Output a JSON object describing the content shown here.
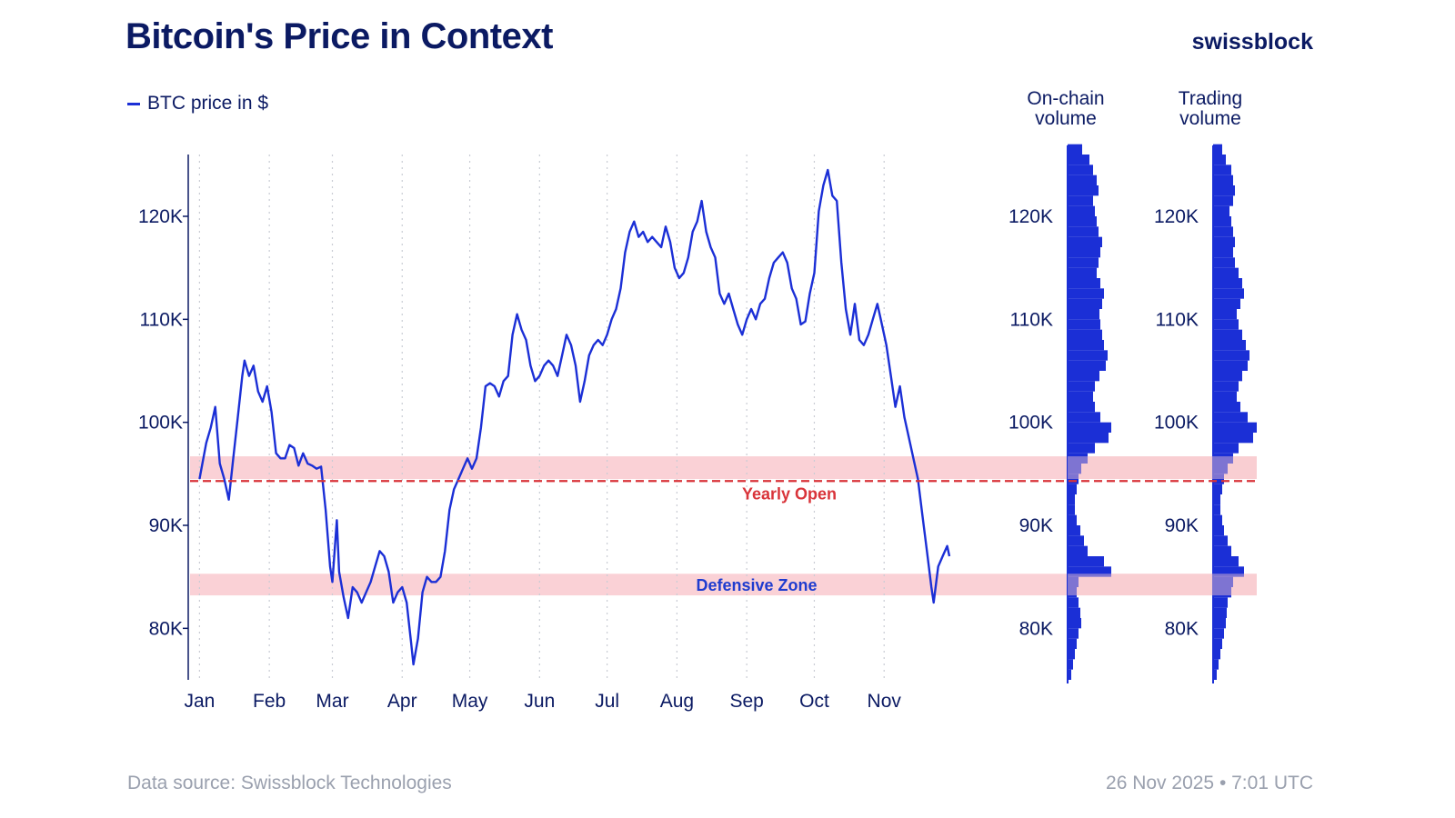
{
  "header": {
    "title": "Bitcoin's Price in Context",
    "brand": "swissblock"
  },
  "legend": {
    "series_label": "BTC price in $"
  },
  "volume_panels": {
    "onchain_title": "On-chain volume",
    "trading_title": "Trading volume"
  },
  "footer": {
    "source": "Data source: Swissblock Technologies",
    "timestamp": "26 Nov 2025 • 7:01 UTC"
  },
  "colors": {
    "line": "#1b2fd6",
    "zone": "#f9c9cf",
    "yearly_open": "#d9343a",
    "defensive_label": "#1f3ccf",
    "axis": "#0b1a63"
  },
  "chart_data": {
    "type": "line",
    "title": "Bitcoin's Price in Context",
    "series_name": "BTC price in $",
    "ylim": [
      75000,
      126000
    ],
    "y_ticks": [
      80000,
      90000,
      100000,
      110000,
      120000
    ],
    "y_tick_labels": [
      "80K",
      "90K",
      "100K",
      "110K",
      "120K"
    ],
    "month_labels": [
      "Jan",
      "Feb",
      "Mar",
      "Apr",
      "May",
      "Jun",
      "Jul",
      "Aug",
      "Sep",
      "Oct",
      "Nov"
    ],
    "x_unit": "day of 2025",
    "month_start_days": [
      0,
      31,
      59,
      90,
      120,
      151,
      181,
      212,
      243,
      273,
      304
    ],
    "xlim": [
      -5,
      335
    ],
    "grid": "vertical dotted at month starts",
    "price_points": [
      [
        0,
        94500
      ],
      [
        3,
        98000
      ],
      [
        5,
        99500
      ],
      [
        7,
        101500
      ],
      [
        9,
        96000
      ],
      [
        11,
        94500
      ],
      [
        13,
        92500
      ],
      [
        15,
        96500
      ],
      [
        17,
        100500
      ],
      [
        19,
        104500
      ],
      [
        20,
        106000
      ],
      [
        22,
        104500
      ],
      [
        24,
        105500
      ],
      [
        26,
        103000
      ],
      [
        28,
        102000
      ],
      [
        30,
        103500
      ],
      [
        32,
        101000
      ],
      [
        34,
        97000
      ],
      [
        36,
        96500
      ],
      [
        38,
        96500
      ],
      [
        40,
        97800
      ],
      [
        42,
        97500
      ],
      [
        44,
        95800
      ],
      [
        46,
        97000
      ],
      [
        48,
        96000
      ],
      [
        50,
        95800
      ],
      [
        52,
        95500
      ],
      [
        54,
        95700
      ],
      [
        56,
        91500
      ],
      [
        58,
        86000
      ],
      [
        59,
        84500
      ],
      [
        61,
        90500
      ],
      [
        62,
        85500
      ],
      [
        64,
        83000
      ],
      [
        66,
        81000
      ],
      [
        68,
        84000
      ],
      [
        70,
        83500
      ],
      [
        72,
        82500
      ],
      [
        74,
        83500
      ],
      [
        76,
        84500
      ],
      [
        78,
        86000
      ],
      [
        80,
        87500
      ],
      [
        82,
        87000
      ],
      [
        84,
        85500
      ],
      [
        86,
        82500
      ],
      [
        88,
        83500
      ],
      [
        90,
        84000
      ],
      [
        92,
        82500
      ],
      [
        94,
        78500
      ],
      [
        95,
        76500
      ],
      [
        97,
        79000
      ],
      [
        99,
        83500
      ],
      [
        101,
        85000
      ],
      [
        103,
        84500
      ],
      [
        105,
        84500
      ],
      [
        107,
        85000
      ],
      [
        109,
        87500
      ],
      [
        111,
        91500
      ],
      [
        113,
        93500
      ],
      [
        115,
        94500
      ],
      [
        117,
        95500
      ],
      [
        119,
        96500
      ],
      [
        121,
        95500
      ],
      [
        123,
        96500
      ],
      [
        125,
        99500
      ],
      [
        127,
        103500
      ],
      [
        129,
        103800
      ],
      [
        131,
        103500
      ],
      [
        133,
        102500
      ],
      [
        135,
        104000
      ],
      [
        137,
        104500
      ],
      [
        139,
        108500
      ],
      [
        141,
        110500
      ],
      [
        143,
        109000
      ],
      [
        145,
        108000
      ],
      [
        147,
        105500
      ],
      [
        149,
        104000
      ],
      [
        151,
        104500
      ],
      [
        153,
        105500
      ],
      [
        155,
        106000
      ],
      [
        157,
        105500
      ],
      [
        159,
        104500
      ],
      [
        161,
        106500
      ],
      [
        163,
        108500
      ],
      [
        165,
        107500
      ],
      [
        167,
        105500
      ],
      [
        169,
        102000
      ],
      [
        171,
        104000
      ],
      [
        173,
        106500
      ],
      [
        175,
        107500
      ],
      [
        177,
        108000
      ],
      [
        179,
        107500
      ],
      [
        181,
        108500
      ],
      [
        183,
        110000
      ],
      [
        185,
        111000
      ],
      [
        187,
        113000
      ],
      [
        189,
        116500
      ],
      [
        191,
        118500
      ],
      [
        193,
        119500
      ],
      [
        195,
        118000
      ],
      [
        197,
        118500
      ],
      [
        199,
        117500
      ],
      [
        201,
        118000
      ],
      [
        203,
        117500
      ],
      [
        205,
        117000
      ],
      [
        207,
        119000
      ],
      [
        209,
        117500
      ],
      [
        211,
        115000
      ],
      [
        213,
        114000
      ],
      [
        215,
        114500
      ],
      [
        217,
        116000
      ],
      [
        219,
        118500
      ],
      [
        221,
        119500
      ],
      [
        223,
        121500
      ],
      [
        225,
        118500
      ],
      [
        227,
        117000
      ],
      [
        229,
        116000
      ],
      [
        231,
        112500
      ],
      [
        233,
        111500
      ],
      [
        235,
        112500
      ],
      [
        237,
        111000
      ],
      [
        239,
        109500
      ],
      [
        241,
        108500
      ],
      [
        243,
        110000
      ],
      [
        245,
        111000
      ],
      [
        247,
        110000
      ],
      [
        249,
        111500
      ],
      [
        251,
        112000
      ],
      [
        253,
        114000
      ],
      [
        255,
        115500
      ],
      [
        257,
        116000
      ],
      [
        259,
        116500
      ],
      [
        261,
        115500
      ],
      [
        263,
        113000
      ],
      [
        265,
        112000
      ],
      [
        267,
        109500
      ],
      [
        269,
        109800
      ],
      [
        271,
        112500
      ],
      [
        273,
        114500
      ],
      [
        275,
        120500
      ],
      [
        277,
        123000
      ],
      [
        279,
        124500
      ],
      [
        281,
        122000
      ],
      [
        283,
        121500
      ],
      [
        285,
        115500
      ],
      [
        287,
        111000
      ],
      [
        289,
        108500
      ],
      [
        291,
        111500
      ],
      [
        293,
        108000
      ],
      [
        295,
        107500
      ],
      [
        297,
        108500
      ],
      [
        299,
        110000
      ],
      [
        301,
        111500
      ],
      [
        303,
        109500
      ],
      [
        305,
        107500
      ],
      [
        307,
        104500
      ],
      [
        309,
        101500
      ],
      [
        311,
        103500
      ],
      [
        313,
        100500
      ],
      [
        315,
        98500
      ],
      [
        317,
        96500
      ],
      [
        319,
        94500
      ],
      [
        321,
        91000
      ],
      [
        323,
        87500
      ],
      [
        325,
        84000
      ],
      [
        326,
        82500
      ],
      [
        328,
        86000
      ],
      [
        330,
        87000
      ],
      [
        332,
        88000
      ],
      [
        333,
        87000
      ]
    ],
    "yearly_open_value": 94300,
    "yearly_open_label": "Yearly Open",
    "zones": [
      {
        "label": "",
        "from": 94500,
        "to": 96700
      },
      {
        "label": "Defensive Zone",
        "from": 83200,
        "to": 85300
      }
    ],
    "onchain_volume_profile": {
      "bins_from": 75000,
      "bin_size": 1000,
      "values": [
        4,
        6,
        8,
        10,
        12,
        15,
        14,
        12,
        10,
        12,
        48,
        40,
        22,
        18,
        14,
        10,
        8,
        8,
        10,
        12,
        15,
        22,
        30,
        45,
        48,
        36,
        30,
        28,
        30,
        35,
        42,
        44,
        40,
        38,
        36,
        35,
        38,
        40,
        36,
        32,
        34,
        36,
        38,
        34,
        32,
        30,
        28,
        34,
        32,
        28,
        24,
        16,
        10
      ]
    },
    "trading_volume_profile": {
      "bins_from": 75000,
      "bin_size": 1000,
      "values": [
        4,
        6,
        8,
        10,
        12,
        14,
        15,
        16,
        20,
        22,
        34,
        28,
        20,
        16,
        12,
        10,
        8,
        8,
        10,
        12,
        16,
        22,
        28,
        44,
        48,
        38,
        30,
        26,
        28,
        32,
        38,
        40,
        36,
        32,
        28,
        26,
        30,
        34,
        32,
        28,
        24,
        22,
        24,
        22,
        20,
        18,
        22,
        24,
        22,
        20,
        14,
        10,
        6
      ]
    }
  }
}
